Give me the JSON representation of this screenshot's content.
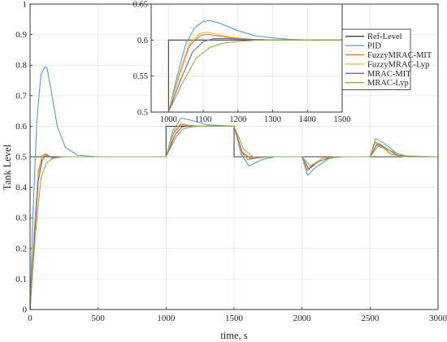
{
  "chart_data": [
    {
      "type": "line",
      "xlabel": "time, s",
      "ylabel": "Tank Level",
      "xlim": [
        0,
        3000
      ],
      "ylim": [
        0,
        1
      ],
      "xticks": [
        "0",
        "500",
        "1000",
        "1500",
        "2000",
        "2500",
        "3000"
      ],
      "yticks": [
        "0",
        "0.1",
        "0.2",
        "0.3",
        "0.4",
        "0.5",
        "0.6",
        "0.7",
        "0.8",
        "0.9",
        "1"
      ],
      "grid": true,
      "series": [
        {
          "name": "Ref-Level",
          "color": "#404040",
          "x": [
            0,
            1000,
            1000,
            1500,
            1500,
            2000,
            2000,
            2500,
            2500,
            3000
          ],
          "y": [
            0.5,
            0.5,
            0.6,
            0.6,
            0.5,
            0.5,
            0.5,
            0.5,
            0.5,
            0.5
          ]
        },
        {
          "name": "PID",
          "color": "#5b9bd5",
          "x": [
            0,
            20,
            50,
            80,
            110,
            125,
            150,
            200,
            260,
            350,
            500,
            1000,
            1050,
            1110,
            1180,
            1300,
            1500,
            1550,
            1610,
            1700,
            1800,
            2000,
            2040,
            2100,
            2200,
            2300,
            2500,
            2540,
            2600,
            2700,
            2800,
            3000
          ],
          "y": [
            0,
            0.3,
            0.62,
            0.77,
            0.795,
            0.79,
            0.73,
            0.6,
            0.53,
            0.505,
            0.5,
            0.5,
            0.585,
            0.627,
            0.62,
            0.605,
            0.6,
            0.51,
            0.47,
            0.49,
            0.5,
            0.5,
            0.44,
            0.465,
            0.495,
            0.5,
            0.5,
            0.56,
            0.545,
            0.51,
            0.5,
            0.5
          ]
        },
        {
          "name": "FuzzyMRAC-MIT",
          "color": "#e07030",
          "x": [
            0,
            30,
            60,
            90,
            120,
            160,
            220,
            300,
            500,
            1000,
            1060,
            1110,
            1160,
            1220,
            1300,
            1500,
            1550,
            1600,
            1650,
            1750,
            2000,
            2040,
            2080,
            2150,
            2250,
            2500,
            2540,
            2580,
            2650,
            2750,
            3000
          ],
          "y": [
            0,
            0.25,
            0.45,
            0.505,
            0.51,
            0.495,
            0.5,
            0.5,
            0.5,
            0.5,
            0.58,
            0.605,
            0.602,
            0.6,
            0.6,
            0.6,
            0.52,
            0.49,
            0.495,
            0.5,
            0.5,
            0.455,
            0.47,
            0.495,
            0.5,
            0.5,
            0.548,
            0.54,
            0.51,
            0.5,
            0.5
          ]
        },
        {
          "name": "FuzzyMRAC-Lyp",
          "color": "#e8b830",
          "x": [
            0,
            30,
            60,
            90,
            120,
            160,
            220,
            300,
            500,
            1000,
            1060,
            1110,
            1160,
            1220,
            1300,
            1500,
            1550,
            1600,
            1650,
            1750,
            2000,
            2040,
            2080,
            2150,
            2250,
            2500,
            2540,
            2580,
            2650,
            2750,
            3000
          ],
          "y": [
            0,
            0.24,
            0.44,
            0.5,
            0.508,
            0.497,
            0.5,
            0.5,
            0.5,
            0.5,
            0.585,
            0.61,
            0.604,
            0.601,
            0.6,
            0.6,
            0.515,
            0.492,
            0.497,
            0.5,
            0.5,
            0.46,
            0.475,
            0.496,
            0.5,
            0.5,
            0.545,
            0.537,
            0.508,
            0.5,
            0.5
          ]
        },
        {
          "name": "MRAC-MIT",
          "color": "#8060a8",
          "x": [
            0,
            30,
            60,
            90,
            120,
            160,
            220,
            300,
            500,
            1000,
            1070,
            1120,
            1180,
            1250,
            1350,
            1500,
            1560,
            1620,
            1700,
            1800,
            2000,
            2050,
            2100,
            2200,
            2300,
            2500,
            2550,
            2600,
            2700,
            2800,
            3000
          ],
          "y": [
            0,
            0.22,
            0.42,
            0.49,
            0.505,
            0.498,
            0.5,
            0.5,
            0.5,
            0.5,
            0.575,
            0.598,
            0.601,
            0.6,
            0.6,
            0.6,
            0.515,
            0.495,
            0.498,
            0.5,
            0.5,
            0.46,
            0.48,
            0.497,
            0.5,
            0.5,
            0.54,
            0.533,
            0.505,
            0.5,
            0.5
          ]
        },
        {
          "name": "MRAC-Lyp",
          "color": "#8cb04a",
          "x": [
            0,
            40,
            80,
            120,
            170,
            250,
            350,
            500,
            1000,
            1080,
            1130,
            1200,
            1280,
            1400,
            1500,
            1570,
            1640,
            1750,
            2000,
            2060,
            2120,
            2250,
            2500,
            2560,
            2620,
            2750,
            3000
          ],
          "y": [
            0,
            0.25,
            0.43,
            0.48,
            0.495,
            0.5,
            0.5,
            0.5,
            0.5,
            0.57,
            0.592,
            0.599,
            0.6,
            0.6,
            0.6,
            0.525,
            0.5,
            0.5,
            0.5,
            0.47,
            0.485,
            0.5,
            0.5,
            0.535,
            0.525,
            0.503,
            0.5
          ]
        }
      ]
    },
    {
      "type": "line",
      "xlim": [
        950,
        1500
      ],
      "ylim": [
        0.5,
        0.65
      ],
      "xticks": [
        "1000",
        "1100",
        "1200",
        "1300",
        "1400",
        "1500"
      ],
      "yticks": [
        "0.5",
        "0.55",
        "0.6",
        "0.65"
      ],
      "grid": true,
      "legend_position": "right",
      "series": [
        {
          "name": "Ref-Level",
          "color": "#404040",
          "x": [
            950,
            1000,
            1000,
            1500
          ],
          "y": [
            0.5,
            0.5,
            0.6,
            0.6
          ]
        },
        {
          "name": "PID",
          "color": "#5b9bd5",
          "x": [
            950,
            1000,
            1025,
            1050,
            1075,
            1100,
            1120,
            1150,
            1200,
            1250,
            1300,
            1350,
            1400,
            1500
          ],
          "y": [
            0.5,
            0.5,
            0.55,
            0.595,
            0.617,
            0.626,
            0.627,
            0.623,
            0.613,
            0.606,
            0.603,
            0.601,
            0.6,
            0.6
          ]
        },
        {
          "name": "FuzzyMRAC-MIT",
          "color": "#e07030",
          "x": [
            950,
            1000,
            1030,
            1060,
            1090,
            1110,
            1140,
            1180,
            1240,
            1300,
            1500
          ],
          "y": [
            0.5,
            0.5,
            0.55,
            0.592,
            0.606,
            0.608,
            0.606,
            0.603,
            0.601,
            0.6,
            0.6
          ]
        },
        {
          "name": "FuzzyMRAC-Lyp",
          "color": "#e8b830",
          "x": [
            950,
            1000,
            1030,
            1060,
            1090,
            1110,
            1140,
            1180,
            1240,
            1300,
            1500
          ],
          "y": [
            0.5,
            0.5,
            0.552,
            0.595,
            0.609,
            0.611,
            0.608,
            0.604,
            0.601,
            0.6,
            0.6
          ]
        },
        {
          "name": "MRAC-MIT",
          "color": "#8060a8",
          "x": [
            950,
            1000,
            1035,
            1070,
            1100,
            1130,
            1170,
            1230,
            1300,
            1500
          ],
          "y": [
            0.5,
            0.5,
            0.545,
            0.584,
            0.598,
            0.602,
            0.602,
            0.601,
            0.6,
            0.6
          ]
        },
        {
          "name": "MRAC-Lyp",
          "color": "#8cb04a",
          "x": [
            950,
            1000,
            1040,
            1080,
            1120,
            1160,
            1200,
            1260,
            1320,
            1500
          ],
          "y": [
            0.5,
            0.5,
            0.54,
            0.575,
            0.59,
            0.596,
            0.598,
            0.6,
            0.6,
            0.6
          ]
        }
      ]
    }
  ]
}
